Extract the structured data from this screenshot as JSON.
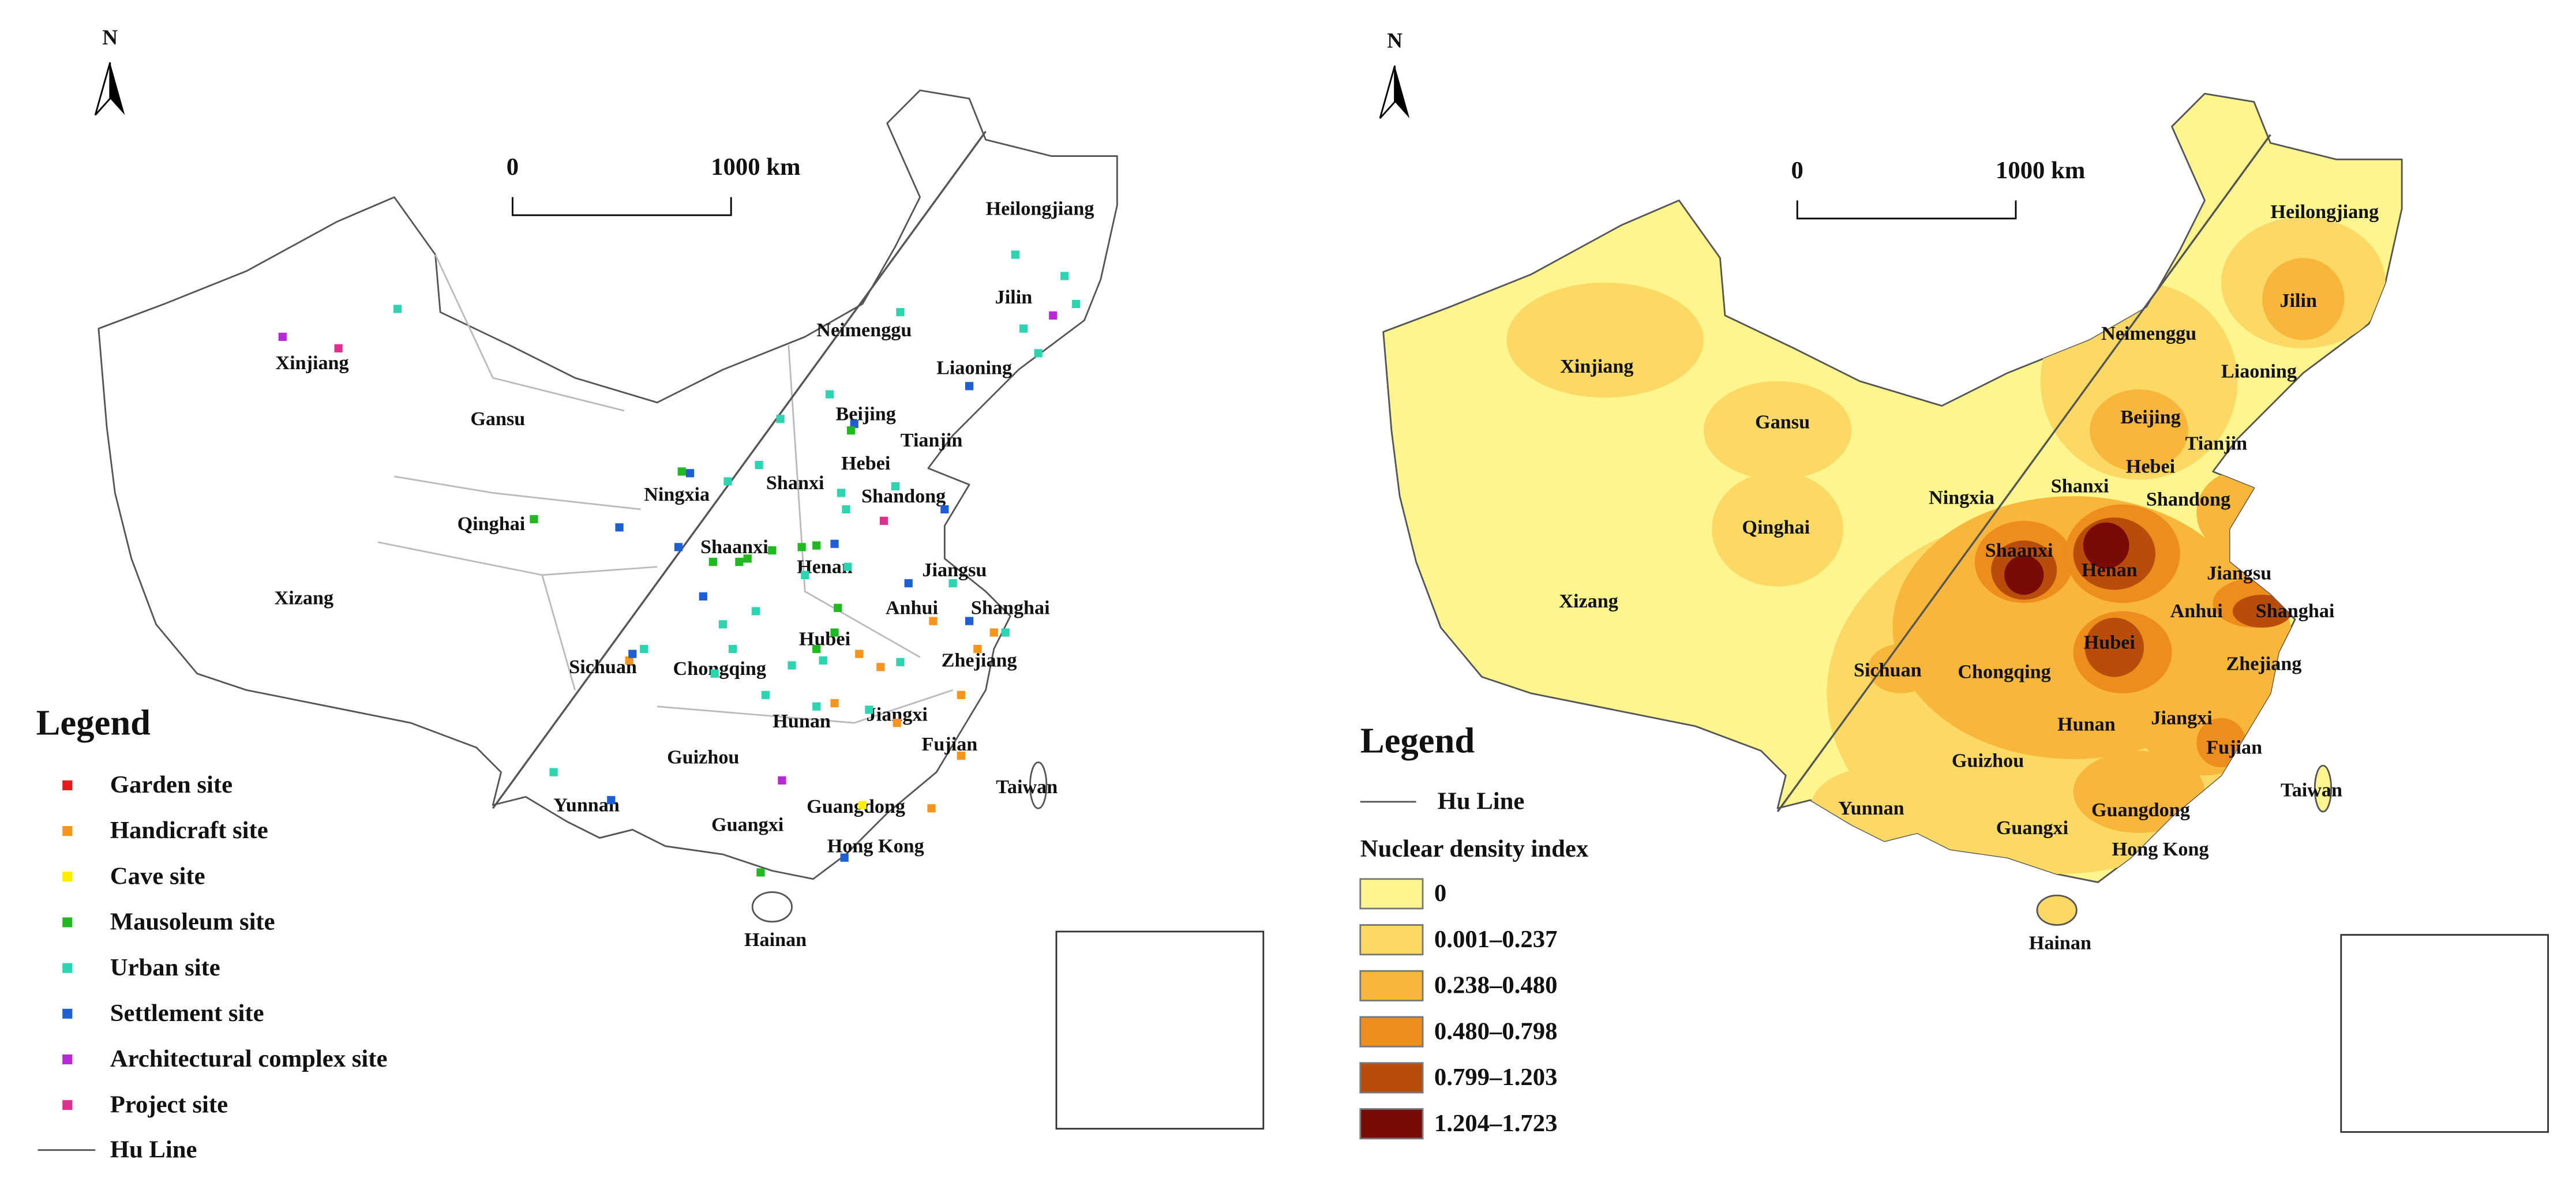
{
  "north": "N",
  "scale": {
    "start": "0",
    "end": "1000 km"
  },
  "provinces": [
    "Heilongjiang",
    "Jilin",
    "Neimenggu",
    "Liaoning",
    "Xinjiang",
    "Gansu",
    "Beijing",
    "Tianjin",
    "Hebei",
    "Shanxi",
    "Shandong",
    "Ningxia",
    "Qinghai",
    "Shaanxi",
    "Henan",
    "Jiangsu",
    "Anhui",
    "Shanghai",
    "Xizang",
    "Hubei",
    "Sichuan",
    "Chongqing",
    "Zhejiang",
    "Hunan",
    "Jiangxi",
    "Fujian",
    "Guizhou",
    "Taiwan",
    "Yunnan",
    "Guangdong",
    "Guangxi",
    "Hong Kong",
    "Hainan"
  ],
  "left_legend": {
    "title": "Legend",
    "items": [
      {
        "label": "Garden site",
        "color": "#e41a1c"
      },
      {
        "label": "Handicraft site",
        "color": "#f7941d"
      },
      {
        "label": "Cave site",
        "color": "#ffee00"
      },
      {
        "label": "Mausoleum site",
        "color": "#22b822"
      },
      {
        "label": "Urban site",
        "color": "#2ed3b0"
      },
      {
        "label": "Settlement site",
        "color": "#1f5fd6"
      },
      {
        "label": "Architectural complex site",
        "color": "#b829d6"
      },
      {
        "label": "Project site",
        "color": "#e0308f"
      }
    ],
    "line": "Hu Line"
  },
  "right_legend": {
    "title": "Legend",
    "line": "Hu Line",
    "subtitle": "Nuclear density index",
    "classes": [
      {
        "label": "0",
        "color": "#fdf58d"
      },
      {
        "label": "0.001–0.237",
        "color": "#fbd964"
      },
      {
        "label": "0.238–0.480",
        "color": "#f8b73a"
      },
      {
        "label": "0.480–0.798",
        "color": "#ed8d1c"
      },
      {
        "label": "0.799–1.203",
        "color": "#b84d0b"
      },
      {
        "label": "1.204–1.723",
        "color": "#7a0a05"
      }
    ]
  }
}
